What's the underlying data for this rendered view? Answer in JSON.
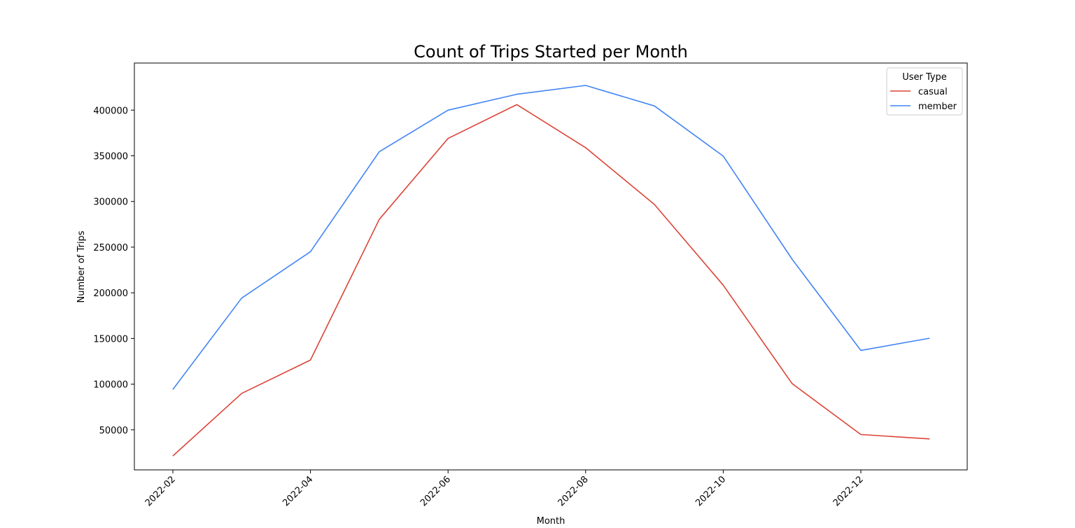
{
  "chart_data": {
    "type": "line",
    "title": "Count of Trips Started per Month",
    "xlabel": "Month",
    "ylabel": "Number of Trips",
    "x": [
      "2022-02",
      "2022-03",
      "2022-04",
      "2022-05",
      "2022-06",
      "2022-07",
      "2022-08",
      "2022-09",
      "2022-10",
      "2022-11",
      "2022-12",
      "2023-01"
    ],
    "x_tick_labels": [
      "2022-02",
      "2022-04",
      "2022-06",
      "2022-08",
      "2022-10",
      "2022-12"
    ],
    "y_ticks": [
      50000,
      100000,
      150000,
      200000,
      250000,
      300000,
      350000,
      400000
    ],
    "ylim": [
      5000,
      440000
    ],
    "grid": false,
    "legend": {
      "title": "User Type",
      "placement": "top-right"
    },
    "series": [
      {
        "name": "casual",
        "color": "#db4437",
        "values": [
          21400,
          89900,
          126400,
          280400,
          369000,
          406000,
          358900,
          296700,
          208300,
          100700,
          44900,
          40000
        ]
      },
      {
        "name": "member",
        "color": "#4285f4",
        "values": [
          94200,
          194200,
          245000,
          354400,
          400000,
          417400,
          427000,
          404600,
          349700,
          236900,
          136900,
          150300
        ]
      }
    ]
  }
}
